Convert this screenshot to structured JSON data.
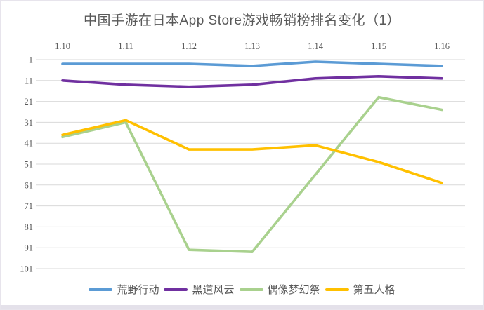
{
  "chart_data": {
    "type": "line",
    "title": "中国手游在日本App Store游戏畅销榜排名变化（1）",
    "categories": [
      "1.10",
      "1.11",
      "1.12",
      "1.13",
      "1.14",
      "1.15",
      "1.16"
    ],
    "x_axis_position": "top",
    "y_axis": {
      "ticks": [
        1,
        11,
        21,
        31,
        41,
        51,
        61,
        71,
        81,
        91,
        101
      ],
      "inverted": true,
      "meaning": "App Store top-grossing rank"
    },
    "series": [
      {
        "name": "荒野行动",
        "color": "#5B9BD5",
        "values": [
          3,
          3,
          3,
          4,
          2,
          3,
          4
        ]
      },
      {
        "name": "黑道风云",
        "color": "#7030A0",
        "values": [
          11,
          13,
          14,
          13,
          10,
          9,
          10
        ]
      },
      {
        "name": "偶像梦幻祭",
        "color": "#A9D18E",
        "values": [
          38,
          31,
          92,
          93,
          56,
          19,
          25
        ]
      },
      {
        "name": "第五人格",
        "color": "#FFC000",
        "values": [
          37,
          30,
          44,
          44,
          42,
          50,
          60
        ]
      }
    ],
    "legend_position": "bottom",
    "grid": true,
    "style": {
      "text_color": "#595959",
      "gridline_color": "#d9d9d9",
      "frame_border_color": "#e7e4ec",
      "bottom_strip_color": "#e4e1ea",
      "background": "#ffffff"
    }
  }
}
